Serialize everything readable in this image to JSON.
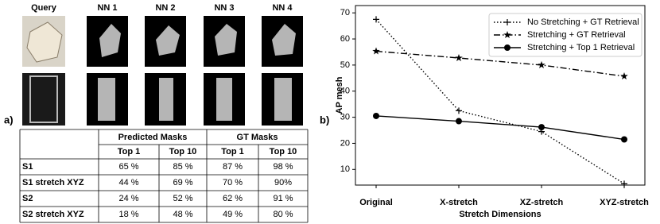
{
  "figure": {
    "label_a": "a)",
    "label_b": "b)",
    "image_headers": [
      "Query",
      "NN 1",
      "NN 2",
      "NN 3",
      "NN 4"
    ],
    "table": {
      "group_headers": [
        "Predicted Masks",
        "GT Masks"
      ],
      "sub_headers": [
        "Top 1",
        "Top 10",
        "Top 1",
        "Top 10"
      ],
      "rows": [
        [
          "S1",
          "65 %",
          "85 %",
          "87 %",
          "98 %"
        ],
        [
          "S1 stretch XYZ",
          "44 %",
          "69 %",
          "70 %",
          "90%"
        ],
        [
          "S2",
          "24 %",
          "52 %",
          "62 %",
          "91 %"
        ],
        [
          "S2 stretch XYZ",
          "18 %",
          "48 %",
          "49 %",
          "80 %"
        ]
      ]
    }
  },
  "chart_data": {
    "type": "line",
    "xlabel": "Stretch Dimensions",
    "ylabel": "AP mesh",
    "categories": [
      "Original",
      "X-stretch",
      "XZ-stretch",
      "XYZ-stretch"
    ],
    "ylim": [
      4,
      72.8
    ],
    "yticks": [
      10,
      20,
      30,
      40,
      50,
      60,
      70
    ],
    "grid": false,
    "legend": "upper right",
    "series": [
      {
        "name": "No Stretching + GT Retrieval",
        "color": "#000000",
        "linestyle": "dotted",
        "marker": "plus",
        "values": [
          67.5,
          32.5,
          24.5,
          4.5
        ]
      },
      {
        "name": "Stretching + GT Retrieval",
        "color": "#000000",
        "linestyle": "dashdot",
        "marker": "star",
        "values": [
          55.3,
          52.7,
          50,
          45.7
        ]
      },
      {
        "name": "Stretching + Top 1 Retrieval",
        "color": "#000000",
        "linestyle": "solid",
        "marker": "circle",
        "values": [
          30.5,
          28.5,
          26.2,
          21.5
        ]
      }
    ]
  }
}
